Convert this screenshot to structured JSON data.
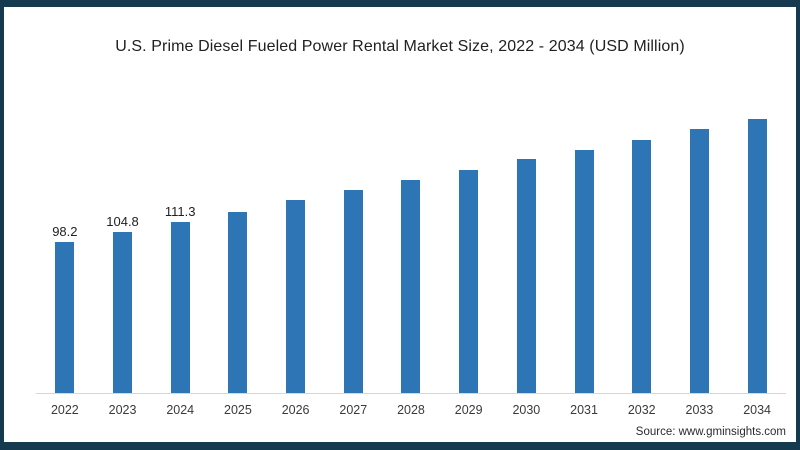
{
  "frame": {
    "border_color": "#15394e",
    "background": "#ffffff"
  },
  "colors": {
    "bar": "#2e75b6",
    "axis_line": "#d6d6d6",
    "title_text": "#212121",
    "label_text": "#1f1f1f",
    "tick_text": "#3a3a3a"
  },
  "source_credit": "Source: www.gminsights.com",
  "chart_data": {
    "type": "bar",
    "title": "U.S. Prime Diesel Fueled Power Rental Market Size, 2022 - 2034 (USD Million)",
    "xlabel": "",
    "ylabel": "",
    "categories": [
      "2022",
      "2023",
      "2024",
      "2025",
      "2026",
      "2027",
      "2028",
      "2029",
      "2030",
      "2031",
      "2032",
      "2033",
      "2034"
    ],
    "values": [
      98.2,
      104.8,
      111.3,
      118.2,
      125.8,
      132.2,
      139.0,
      145.5,
      152.4,
      158.5,
      165.0,
      171.9,
      178.3
    ],
    "data_labels": [
      "98.2",
      "104.8",
      "111.3",
      "",
      "",
      "",
      "",
      "",
      "",
      "",
      "",
      "",
      ""
    ],
    "ylim": [
      0,
      191
    ],
    "grid": false,
    "legend": false,
    "y_axis_ticks_visible": false,
    "note": "values for 2025-2034 estimated from bar heights; only 2022-2024 have visible data labels"
  }
}
